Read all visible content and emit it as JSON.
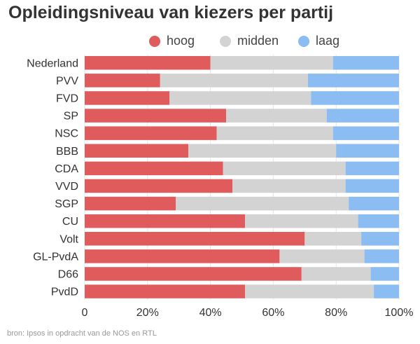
{
  "title": "Opleidingsniveau van kiezers per partij",
  "source": "bron: Ipsos in opdracht van de NOS en RTL",
  "legend": [
    {
      "label": "hoog",
      "color": "#e05c5c"
    },
    {
      "label": "midden",
      "color": "#d3d3d3"
    },
    {
      "label": "laag",
      "color": "#8bbcf2"
    }
  ],
  "chart_data": {
    "type": "bar",
    "orientation": "horizontal",
    "stacked": true,
    "categories": [
      "Nederland",
      "PVV",
      "FVD",
      "SP",
      "NSC",
      "BBB",
      "CDA",
      "VVD",
      "SGP",
      "CU",
      "Volt",
      "GL-PvdA",
      "D66",
      "PvdD"
    ],
    "series": [
      {
        "name": "hoog",
        "color": "#e05c5c",
        "values": [
          40,
          24,
          27,
          45,
          42,
          33,
          44,
          47,
          29,
          51,
          70,
          62,
          69,
          51
        ]
      },
      {
        "name": "midden",
        "color": "#d3d3d3",
        "values": [
          39,
          47,
          45,
          32,
          37,
          47,
          39,
          36,
          55,
          36,
          18,
          27,
          22,
          41
        ]
      },
      {
        "name": "laag",
        "color": "#8bbcf2",
        "values": [
          21,
          29,
          28,
          23,
          21,
          20,
          17,
          17,
          16,
          13,
          12,
          11,
          9,
          8
        ]
      }
    ],
    "xlim": [
      0,
      100
    ],
    "xticks": [
      "0",
      "20%",
      "40%",
      "60%",
      "80%",
      "100%"
    ],
    "grid": true,
    "legend_position": "top"
  }
}
